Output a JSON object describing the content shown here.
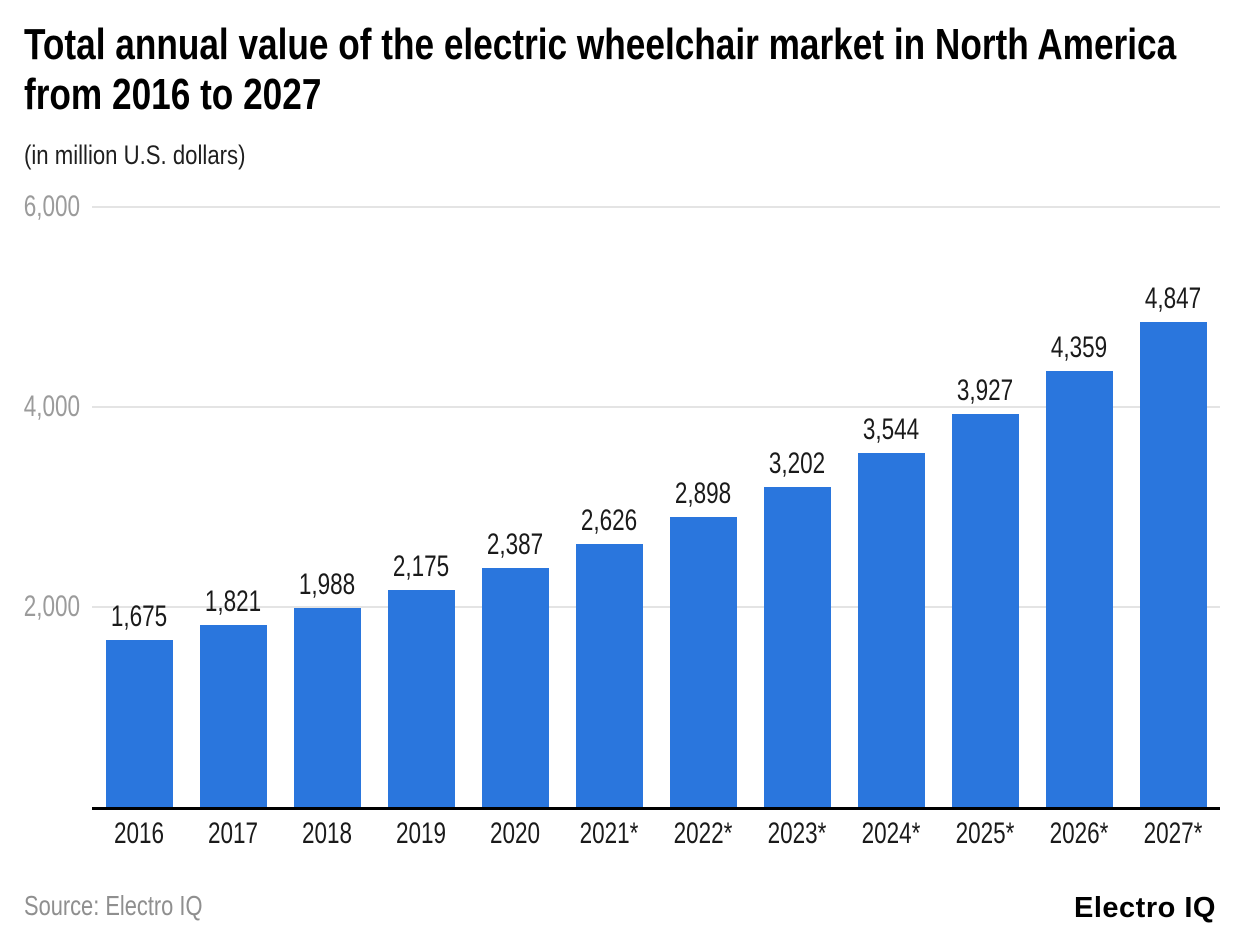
{
  "header": {
    "title": "Total annual value of the electric wheelchair market in North America from 2016 to 2027",
    "subtitle": "(in million U.S. dollars)"
  },
  "footer": {
    "source": "Source: Electro IQ",
    "brand": "Electro IQ"
  },
  "colors": {
    "bar": "#2a76dd",
    "grid": "#e4e4e4",
    "baseline": "#000000",
    "ytick_label": "#9b9b9b",
    "value_label": "#1a1a1a",
    "xtick_label": "#1a1a1a"
  },
  "chart_data": {
    "type": "bar",
    "title": "Total annual value of the electric wheelchair market in North America from 2016 to 2027",
    "subtitle": "(in million U.S. dollars)",
    "xlabel": "",
    "ylabel": "",
    "categories": [
      "2016",
      "2017",
      "2018",
      "2019",
      "2020",
      "2021*",
      "2022*",
      "2023*",
      "2024*",
      "2025*",
      "2026*",
      "2027*"
    ],
    "values": [
      1675,
      1821,
      1988,
      2175,
      2387,
      2626,
      2898,
      3202,
      3544,
      3927,
      4359,
      4847
    ],
    "value_labels": [
      "1,675",
      "1,821",
      "1,988",
      "2,175",
      "2,387",
      "2,626",
      "2,898",
      "3,202",
      "3,544",
      "3,927",
      "4,359",
      "4,847"
    ],
    "ylim": [
      0,
      6000
    ],
    "yticks": [
      2000,
      4000,
      6000
    ],
    "ytick_labels": [
      "2,000",
      "4,000",
      "6,000"
    ],
    "grid": true,
    "legend": false,
    "bar_color": "#2a76dd"
  }
}
